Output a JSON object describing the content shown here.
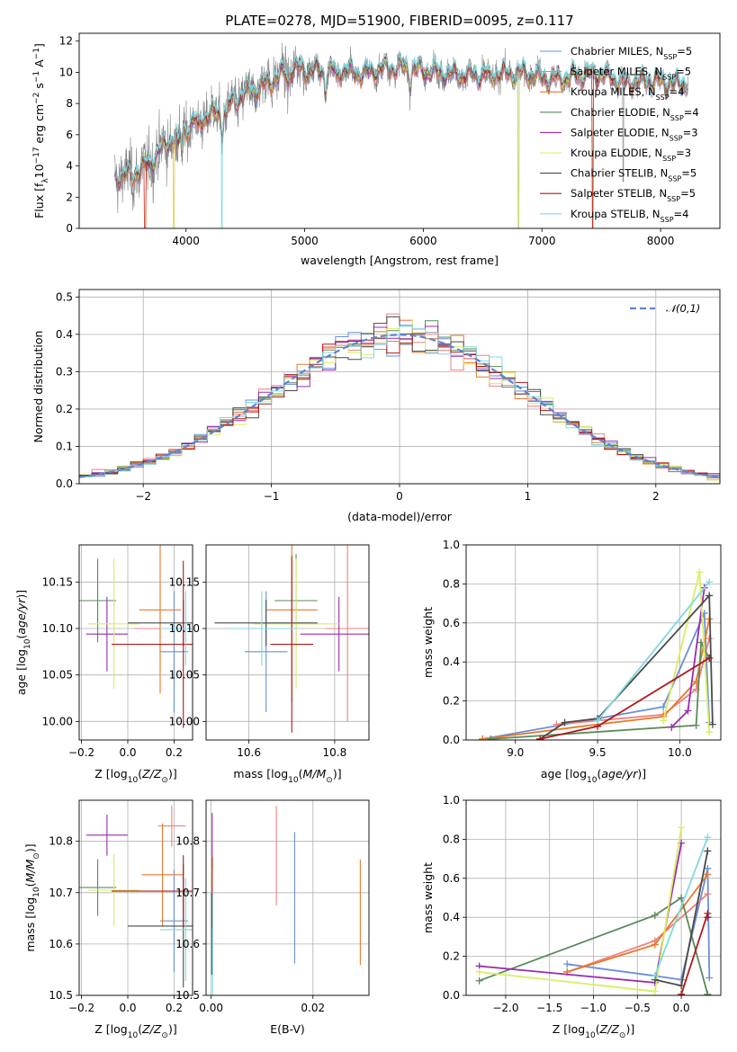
{
  "figure_title": "PLATE=0278, MJD=51900, FIBERID=0095, z=0.117",
  "models": [
    {
      "name": "Chabrier MILES",
      "nssp": "5",
      "color": "#6a8fd8"
    },
    {
      "name": "Salpeter MILES",
      "nssp": "5",
      "color": "#f08080"
    },
    {
      "name": "Kroupa MILES",
      "nssp": "4",
      "color": "#e8782a"
    },
    {
      "name": "Chabrier ELODIE",
      "nssp": "4",
      "color": "#5a8a5a"
    },
    {
      "name": "Salpeter ELODIE",
      "nssp": "3",
      "color": "#9a2ab0"
    },
    {
      "name": "Kroupa ELODIE",
      "nssp": "3",
      "color": "#d8ee60"
    },
    {
      "name": "Chabrier STELIB",
      "nssp": "5",
      "color": "#4a4a4a"
    },
    {
      "name": "Salpeter STELIB",
      "nssp": "5",
      "color": "#b01818"
    },
    {
      "name": "Kroupa STELIB",
      "nssp": "4",
      "color": "#80d8e0"
    }
  ],
  "chart_data": [
    {
      "id": "spectrum",
      "type": "line",
      "title": "PLATE=0278, MJD=51900, FIBERID=0095, z=0.117",
      "xlabel": "wavelength [Angstrom, rest frame]",
      "ylabel": "Flux [f_λ 10^-17 erg cm^-2 s^-1 A^-1]",
      "xlim": [
        3100,
        8500
      ],
      "ylim": [
        0,
        12.5
      ],
      "xticks": [
        4000,
        5000,
        6000,
        7000,
        8000
      ],
      "yticks": [
        0,
        2,
        4,
        6,
        8,
        10,
        12
      ],
      "data_color": "#808080",
      "continuum_points": [
        [
          3400,
          3.3
        ],
        [
          3550,
          3.4
        ],
        [
          3700,
          4.2
        ],
        [
          3800,
          5.2
        ],
        [
          3900,
          5.8
        ],
        [
          4000,
          6.4
        ],
        [
          4100,
          6.9
        ],
        [
          4300,
          7.5
        ],
        [
          4500,
          8.6
        ],
        [
          4700,
          9.4
        ],
        [
          4900,
          10.2
        ],
        [
          5100,
          10.1
        ],
        [
          5300,
          10.1
        ],
        [
          5500,
          9.9
        ],
        [
          5700,
          10.3
        ],
        [
          5900,
          10.2
        ],
        [
          6100,
          10.0
        ],
        [
          6300,
          9.8
        ],
        [
          6500,
          9.8
        ],
        [
          6700,
          9.9
        ],
        [
          6900,
          9.9
        ],
        [
          7100,
          9.5
        ],
        [
          7300,
          9.8
        ],
        [
          7500,
          9.9
        ],
        [
          7700,
          9.3
        ],
        [
          7900,
          9.5
        ],
        [
          8100,
          9.3
        ],
        [
          8230,
          9.3
        ]
      ],
      "grid": false,
      "legend": "upper right"
    },
    {
      "id": "residuals",
      "type": "histogram",
      "xlabel": "(data-model)/error",
      "ylabel": "Normed distribution",
      "xlim": [
        -2.5,
        2.5
      ],
      "ylim": [
        0,
        0.52
      ],
      "xticks": [
        -2,
        -1,
        0,
        1,
        2
      ],
      "yticks": [
        0,
        0.1,
        0.2,
        0.3,
        0.4,
        0.5
      ],
      "bin_width": 0.1,
      "bin_start": -2.5,
      "reference_label": "𝒩(0,1)",
      "reference_color": "#5b84d6",
      "grid": true,
      "legend": "upper right"
    },
    {
      "id": "age_vs_Z",
      "type": "errorbar",
      "xlabel": "Z [log10(Z/Z⊙)]",
      "ylabel": "age [log10(age/yr)]",
      "xlim": [
        -0.21,
        0.28
      ],
      "ylim": [
        9.98,
        10.19
      ],
      "xticks": [
        -0.2,
        0.0,
        0.2
      ],
      "yticks": [
        10.0,
        10.05,
        10.1,
        10.15
      ],
      "points": [
        {
          "model": 0,
          "x": 0.2,
          "xerr": 0.06,
          "y": 10.075,
          "yerr": 0.065
        },
        {
          "model": 1,
          "x": 0.14,
          "xerr": 0.11,
          "y": 10.1,
          "yerr": 0.045
        },
        {
          "model": 2,
          "x": 0.14,
          "xerr": 0.09,
          "y": 10.12,
          "yerr": 0.09
        },
        {
          "model": 3,
          "x": -0.13,
          "xerr": 0.08,
          "y": 10.13,
          "yerr": 0.045
        },
        {
          "model": 4,
          "x": -0.09,
          "xerr": 0.09,
          "y": 10.094,
          "yerr": 0.04
        },
        {
          "model": 5,
          "x": -0.06,
          "xerr": 0.11,
          "y": 10.105,
          "yerr": 0.07
        },
        {
          "model": 6,
          "x": 0.24,
          "xerr": 0.24,
          "y": 10.106,
          "yerr": 0.025
        },
        {
          "model": 7,
          "x": 0.24,
          "xerr": 0.31,
          "y": 10.083,
          "yerr": 0.09
        },
        {
          "model": 8,
          "x": 0.25,
          "xerr": 0.11,
          "y": 10.1,
          "yerr": 0.04
        }
      ],
      "grid": true
    },
    {
      "id": "age_vs_mass",
      "type": "errorbar",
      "xlabel": "mass [log10(M/M⊙)]",
      "ylabel": "",
      "xlim": [
        10.5,
        10.88
      ],
      "ylim": [
        9.98,
        10.19
      ],
      "xticks": [
        10.6,
        10.8
      ],
      "yticks": [
        10.0,
        10.05,
        10.1,
        10.15
      ],
      "points": [
        {
          "model": 0,
          "x": 10.64,
          "xerr": 0.05,
          "y": 10.075,
          "yerr": 0.065
        },
        {
          "model": 1,
          "x": 10.83,
          "xerr": 0.05,
          "y": 10.1,
          "yerr": 0.1
        },
        {
          "model": 2,
          "x": 10.7,
          "xerr": 0.06,
          "y": 10.12,
          "yerr": 0.1
        },
        {
          "model": 3,
          "x": 10.71,
          "xerr": 0.05,
          "y": 10.13,
          "yerr": 0.05
        },
        {
          "model": 4,
          "x": 10.81,
          "xerr": 0.09,
          "y": 10.094,
          "yerr": 0.04
        },
        {
          "model": 5,
          "x": 10.71,
          "xerr": 0.1,
          "y": 10.105,
          "yerr": 0.07
        },
        {
          "model": 6,
          "x": 10.64,
          "xerr": 0.12,
          "y": 10.106,
          "yerr": 0.025
        },
        {
          "model": 7,
          "x": 10.7,
          "xerr": 0.05,
          "y": 10.083,
          "yerr": 0.095
        },
        {
          "model": 8,
          "x": 10.63,
          "xerr": 0.08,
          "y": 10.1,
          "yerr": 0.04
        }
      ],
      "grid": true
    },
    {
      "id": "mass_weight_vs_age",
      "type": "line",
      "xlabel": "age [log10(age/yr)]",
      "ylabel": "mass weight",
      "xlim": [
        8.7,
        10.25
      ],
      "ylim": [
        0,
        1
      ],
      "xticks": [
        9.0,
        9.5,
        10.0
      ],
      "yticks": [
        0,
        0.2,
        0.4,
        0.6,
        0.8,
        1.0
      ],
      "series": [
        {
          "model": 0,
          "points": [
            [
              8.8,
              0.005
            ],
            [
              9.5,
              0.11
            ],
            [
              9.9,
              0.17
            ],
            [
              10.15,
              0.65
            ],
            [
              10.18,
              0.09
            ]
          ]
        },
        {
          "model": 1,
          "points": [
            [
              9.25,
              0.08
            ],
            [
              9.9,
              0.13
            ],
            [
              10.1,
              0.26
            ],
            [
              10.18,
              0.52
            ]
          ]
        },
        {
          "model": 2,
          "points": [
            [
              8.8,
              0.005
            ],
            [
              9.5,
              0.08
            ],
            [
              9.9,
              0.12
            ],
            [
              10.1,
              0.3
            ],
            [
              10.18,
              0.62
            ]
          ]
        },
        {
          "model": 3,
          "points": [
            [
              8.85,
              0.005
            ],
            [
              10.1,
              0.075
            ],
            [
              10.13,
              0.5
            ],
            [
              10.18,
              0.42
            ]
          ]
        },
        {
          "model": 4,
          "points": [
            [
              9.95,
              0.065
            ],
            [
              10.05,
              0.15
            ],
            [
              10.15,
              0.78
            ]
          ]
        },
        {
          "model": 5,
          "points": [
            [
              9.9,
              0.1
            ],
            [
              10.12,
              0.86
            ],
            [
              10.18,
              0.04
            ]
          ]
        },
        {
          "model": 6,
          "points": [
            [
              9.15,
              0.005
            ],
            [
              9.3,
              0.09
            ],
            [
              9.5,
              0.11
            ],
            [
              10.18,
              0.74
            ],
            [
              10.2,
              0.08
            ]
          ]
        },
        {
          "model": 7,
          "points": [
            [
              9.15,
              0.005
            ],
            [
              9.5,
              0.07
            ],
            [
              10.18,
              0.42
            ]
          ]
        },
        {
          "model": 8,
          "points": [
            [
              9.5,
              0.1
            ],
            [
              10.18,
              0.81
            ]
          ]
        }
      ],
      "grid": true
    },
    {
      "id": "mass_vs_Z",
      "type": "errorbar",
      "xlabel": "Z [log10(Z/Z⊙)]",
      "ylabel": "mass [log10(M/M⊙)]",
      "xlim": [
        -0.21,
        0.28
      ],
      "ylim": [
        10.5,
        10.88
      ],
      "xticks": [
        -0.2,
        0.0,
        0.2
      ],
      "yticks": [
        10.5,
        10.6,
        10.7,
        10.8
      ],
      "points": [
        {
          "model": 0,
          "x": 0.2,
          "xerr": 0.06,
          "y": 10.645,
          "yerr": 0.1
        },
        {
          "model": 1,
          "x": 0.19,
          "xerr": 0.06,
          "y": 10.83,
          "yerr": 0.04
        },
        {
          "model": 2,
          "x": 0.15,
          "xerr": 0.09,
          "y": 10.735,
          "yerr": 0.1
        },
        {
          "model": 3,
          "x": -0.13,
          "xerr": 0.08,
          "y": 10.71,
          "yerr": 0.055
        },
        {
          "model": 4,
          "x": -0.09,
          "xerr": 0.09,
          "y": 10.812,
          "yerr": 0.04
        },
        {
          "model": 5,
          "x": -0.06,
          "xerr": 0.11,
          "y": 10.705,
          "yerr": 0.07
        },
        {
          "model": 6,
          "x": 0.24,
          "xerr": 0.24,
          "y": 10.635,
          "yerr": 0.12
        },
        {
          "model": 7,
          "x": 0.24,
          "xerr": 0.31,
          "y": 10.703,
          "yerr": 0.07
        },
        {
          "model": 8,
          "x": 0.25,
          "xerr": 0.11,
          "y": 10.628,
          "yerr": 0.1
        }
      ],
      "grid": true
    },
    {
      "id": "mass_vs_ebv",
      "type": "errorbar",
      "xlabel": "E(B-V)",
      "ylabel": "",
      "xlim": [
        -0.001,
        0.031
      ],
      "ylim": [
        10.5,
        10.88
      ],
      "xticks": [
        0.0,
        0.02
      ],
      "yticks": [
        10.5,
        10.6,
        10.7,
        10.8
      ],
      "points": [
        {
          "model": 0,
          "x": 0.0164,
          "xerr": 0,
          "y": 10.69,
          "yerr": 0.128
        },
        {
          "model": 1,
          "x": 0.0128,
          "xerr": 0,
          "y": 10.772,
          "yerr": 0.097
        },
        {
          "model": 2,
          "x": 0.0293,
          "xerr": 0,
          "y": 10.662,
          "yerr": 0.103
        },
        {
          "model": 3,
          "x": 0.0001,
          "xerr": 0,
          "y": 10.695,
          "yerr": 0.04
        },
        {
          "model": 4,
          "x": 0.0002,
          "xerr": 0,
          "y": 10.8,
          "yerr": 0.055
        },
        {
          "model": 5,
          "x": 0.0001,
          "xerr": 0,
          "y": 10.7,
          "yerr": 0.07
        },
        {
          "model": 6,
          "x": 0.0001,
          "xerr": 0,
          "y": 10.62,
          "yerr": 0.08
        },
        {
          "model": 7,
          "x": 0.0002,
          "xerr": 0,
          "y": 10.7,
          "yerr": 0.07
        },
        {
          "model": 8,
          "x": 0.0003,
          "xerr": 0,
          "y": 10.6,
          "yerr": 0.1
        }
      ],
      "grid": true
    },
    {
      "id": "mass_weight_vs_Z",
      "type": "line",
      "xlabel": "Z [log10(Z/Z⊙)]",
      "ylabel": "mass weight",
      "xlim": [
        -2.45,
        0.45
      ],
      "ylim": [
        0,
        1
      ],
      "xticks": [
        -2.0,
        -1.5,
        -1.0,
        -0.5,
        0.0
      ],
      "yticks": [
        0,
        0.2,
        0.4,
        0.6,
        0.8,
        1.0
      ],
      "series": [
        {
          "model": 0,
          "points": [
            [
              -1.3,
              0.16
            ],
            [
              -0.3,
              0.1
            ],
            [
              0.0,
              0.08
            ],
            [
              0.3,
              0.65
            ],
            [
              0.32,
              0.09
            ]
          ]
        },
        {
          "model": 1,
          "points": [
            [
              -1.3,
              0.12
            ],
            [
              -0.3,
              0.28
            ],
            [
              0.3,
              0.52
            ]
          ]
        },
        {
          "model": 2,
          "points": [
            [
              -1.3,
              0.12
            ],
            [
              -0.3,
              0.26
            ],
            [
              0.3,
              0.62
            ]
          ]
        },
        {
          "model": 3,
          "points": [
            [
              -2.3,
              0.075
            ],
            [
              -0.3,
              0.41
            ],
            [
              0.0,
              0.5
            ],
            [
              0.3,
              0.005
            ]
          ]
        },
        {
          "model": 4,
          "points": [
            [
              -2.3,
              0.15
            ],
            [
              -0.3,
              0.065
            ],
            [
              0.0,
              0.78
            ]
          ]
        },
        {
          "model": 5,
          "points": [
            [
              -2.3,
              0.12
            ],
            [
              -0.3,
              0.02
            ],
            [
              0.0,
              0.86
            ]
          ]
        },
        {
          "model": 6,
          "points": [
            [
              -0.3,
              0.08
            ],
            [
              0.0,
              0.05
            ],
            [
              0.3,
              0.74
            ]
          ]
        },
        {
          "model": 7,
          "points": [
            [
              0.0,
              0.005
            ],
            [
              0.3,
              0.42
            ],
            [
              0.3,
              0.4
            ]
          ]
        },
        {
          "model": 8,
          "points": [
            [
              -0.3,
              0.1
            ],
            [
              0.3,
              0.81
            ]
          ]
        }
      ],
      "grid": true
    }
  ]
}
